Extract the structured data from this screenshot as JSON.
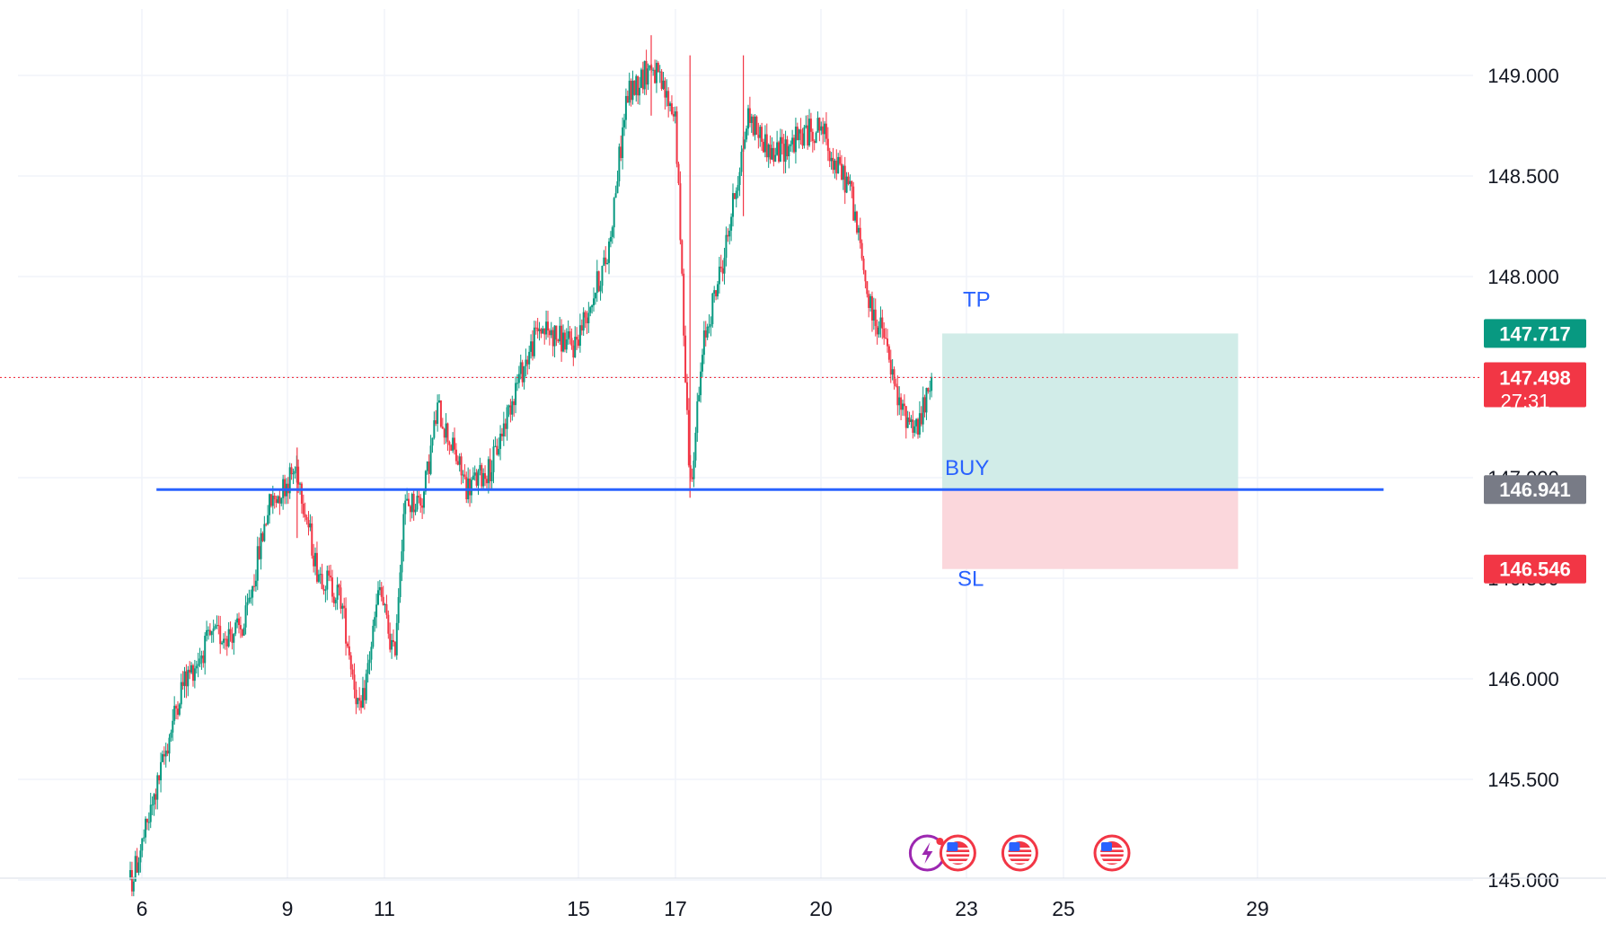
{
  "colors": {
    "background": "#ffffff",
    "grid": "#f0f3fa",
    "candle_up": "#089981",
    "candle_down": "#f23645",
    "entry_line": "#2962ff",
    "target_zone": "#d1ece8",
    "stop_zone": "#fbd7dc",
    "annotation": "#2962ff",
    "label_target": "#089981",
    "label_current": "#f23645",
    "label_entry": "#787b86",
    "label_stop": "#f23645",
    "current_price_line": "#f23645"
  },
  "chart_data": {
    "type": "candlestick",
    "title": "",
    "xlabel": "",
    "ylabel": "",
    "grid": true,
    "y_axis_position": "right",
    "ylim": [
      144.98,
      149.33
    ],
    "y_ticks": [
      "145.000",
      "145.500",
      "146.000",
      "148.000",
      "148.500",
      "149.000"
    ],
    "x_ticks": [
      "6",
      "9",
      "11",
      "15",
      "17",
      "20",
      "23",
      "25",
      "29"
    ],
    "key_points_date_price": [
      [
        "1",
        145.15
      ],
      [
        "1.2",
        145.05
      ],
      [
        "5.8",
        145.0
      ],
      [
        "6.2",
        145.35
      ],
      [
        "6.8",
        145.95
      ],
      [
        "7.4",
        146.2
      ],
      [
        "8.1",
        146.25
      ],
      [
        "8.6",
        146.85
      ],
      [
        "9.2",
        147.05
      ],
      [
        "9.6",
        146.55
      ],
      [
        "10.1",
        146.4
      ],
      [
        "10.5",
        145.8
      ],
      [
        "10.9",
        146.45
      ],
      [
        "11.2",
        146.1
      ],
      [
        "11.4",
        146.85
      ],
      [
        "11.8",
        146.9
      ],
      [
        "12.1",
        147.35
      ],
      [
        "12.7",
        146.95
      ],
      [
        "13.2",
        147.05
      ],
      [
        "13.7",
        147.45
      ],
      [
        "14.2",
        147.75
      ],
      [
        "14.9",
        147.65
      ],
      [
        "15.6",
        148.1
      ],
      [
        "16.0",
        148.9
      ],
      [
        "16.5",
        149.05
      ],
      [
        "17.0",
        148.8
      ],
      [
        "17.3",
        146.95
      ],
      [
        "17.6",
        147.7
      ],
      [
        "18.0",
        148.1
      ],
      [
        "18.5",
        148.8
      ],
      [
        "19.0",
        148.6
      ],
      [
        "19.6",
        148.7
      ],
      [
        "20.0",
        148.75
      ],
      [
        "20.3",
        148.55
      ],
      [
        "20.6",
        148.45
      ],
      [
        "21.0",
        147.85
      ],
      [
        "21.3",
        147.7
      ],
      [
        "21.6",
        147.35
      ],
      [
        "22.0",
        147.25
      ],
      [
        "22.3",
        147.48
      ]
    ],
    "position": {
      "type": "long",
      "entry": 146.941,
      "target": 147.717,
      "stop": 146.546,
      "labels": {
        "target": "TP",
        "entry": "BUY",
        "stop": "SL"
      },
      "start_date": "22.5",
      "end_date": "28.6"
    },
    "horizontal_line": {
      "price": 146.941,
      "start_date": "6.3",
      "end_date": "31.6"
    },
    "current_price": {
      "price": 147.498,
      "price_label": "147.498",
      "countdown": "27:31"
    },
    "price_labels": {
      "target": "147.717",
      "entry": "146.941",
      "stop": "146.546"
    },
    "event_markers": [
      {
        "date": "22.6",
        "icons": [
          "lightning-icon",
          "us-flag-icon"
        ]
      },
      {
        "date": "24.1",
        "icons": [
          "us-flag-icon"
        ]
      },
      {
        "date": "26.0",
        "icons": [
          "us-flag-icon"
        ]
      }
    ],
    "partially_hidden_ticks": [
      "147.000",
      "146.500"
    ]
  }
}
